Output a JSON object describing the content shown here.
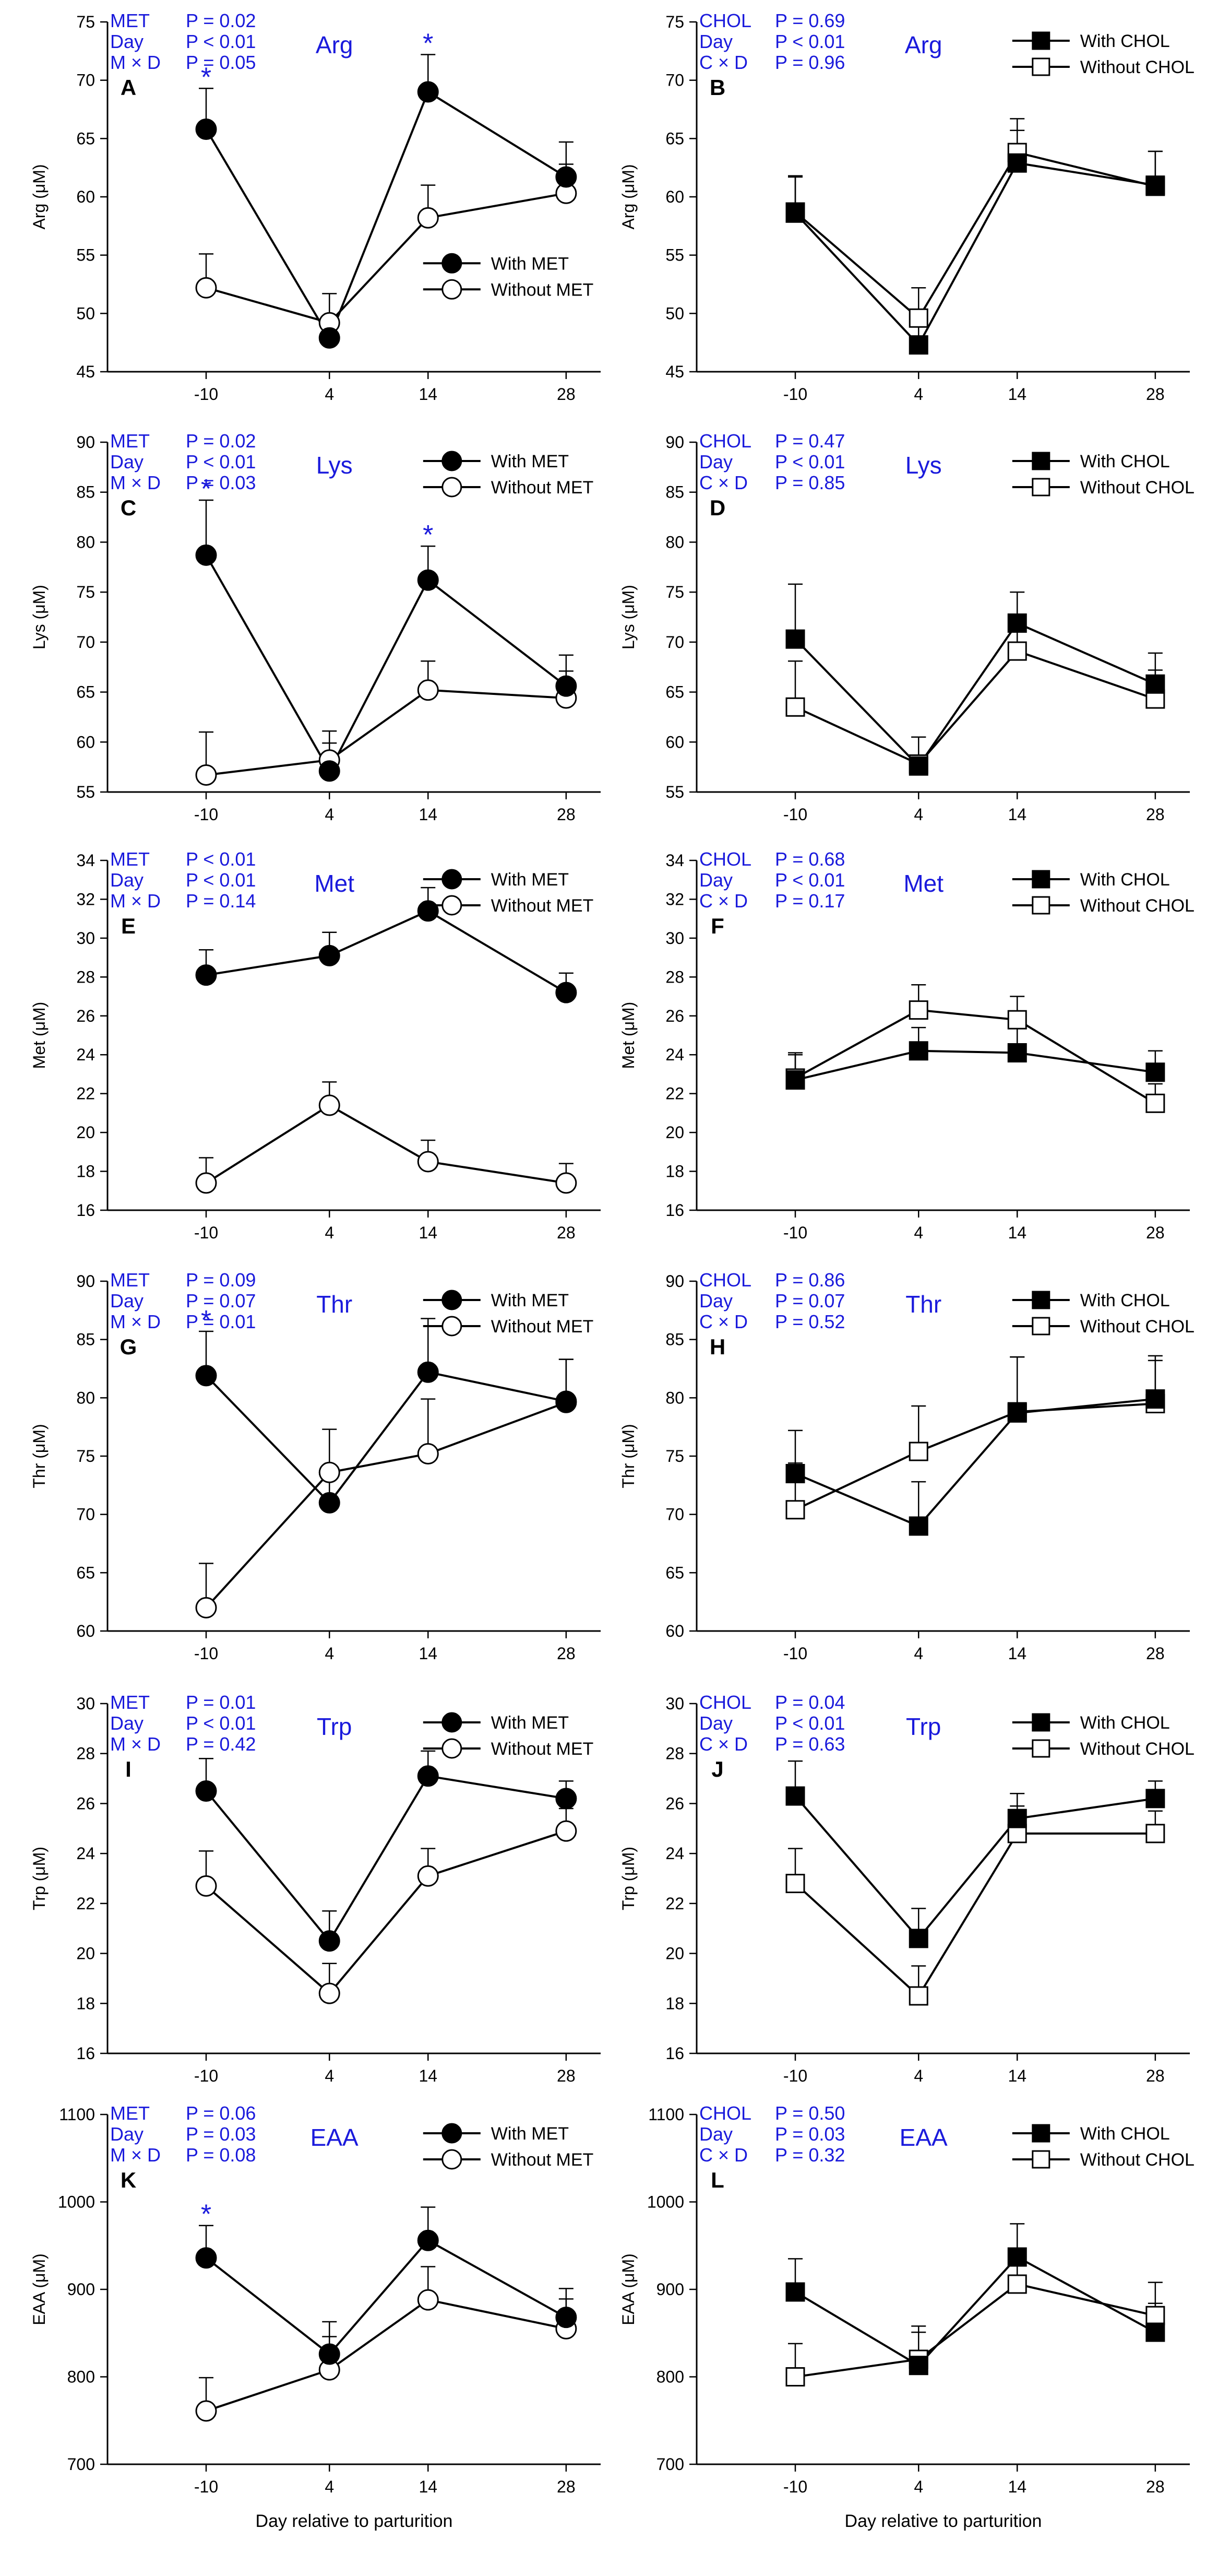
{
  "figure": {
    "x_axis_label": "Day relative to parturition",
    "x_categories": [
      "-10",
      "4",
      "14",
      "28"
    ]
  },
  "colors": {
    "ink": "#000000",
    "annotation_blue": "#1a1adc",
    "background": "#ffffff"
  },
  "chart_data": [
    {
      "panel": "A",
      "type": "line",
      "title": "Arg",
      "ylabel": "Arg (μM)",
      "ylim": [
        45,
        75
      ],
      "yticks": [
        45,
        50,
        55,
        60,
        65,
        70,
        75
      ],
      "categories": [
        "-10",
        "4",
        "14",
        "28"
      ],
      "stats": [
        {
          "label": "MET",
          "value": "P = 0.02"
        },
        {
          "label": "Day",
          "value": "P < 0.01"
        },
        {
          "label": "M × D",
          "value": "P = 0.05"
        }
      ],
      "legend": "right-middle",
      "marker": "circle",
      "series": [
        {
          "name": "With MET",
          "fill": "filled",
          "values": [
            65.8,
            47.9,
            69.0,
            61.7
          ],
          "errors": [
            3.5,
            0.6,
            3.2,
            3.0
          ]
        },
        {
          "name": "Without MET",
          "fill": "open",
          "values": [
            52.2,
            49.2,
            58.2,
            60.3
          ],
          "errors": [
            2.9,
            2.5,
            2.8,
            2.5
          ]
        }
      ],
      "significance": [
        0,
        2
      ]
    },
    {
      "panel": "B",
      "type": "line",
      "title": "Arg",
      "ylabel": "Arg (μM)",
      "ylim": [
        45,
        75
      ],
      "yticks": [
        45,
        50,
        55,
        60,
        65,
        70,
        75
      ],
      "categories": [
        "-10",
        "4",
        "14",
        "28"
      ],
      "stats": [
        {
          "label": "CHOL",
          "value": "P = 0.69"
        },
        {
          "label": "Day",
          "value": "P < 0.01"
        },
        {
          "label": "C × D",
          "value": "P = 0.96"
        }
      ],
      "legend": "top-right",
      "marker": "square",
      "series": [
        {
          "name": "With CHOL",
          "fill": "filled",
          "values": [
            58.6,
            47.3,
            62.9,
            61.0
          ],
          "errors": [
            3.2,
            2.5,
            2.8,
            2.9
          ]
        },
        {
          "name": "Without CHOL",
          "fill": "open",
          "values": [
            58.7,
            49.6,
            63.8,
            60.9
          ],
          "errors": [
            3.0,
            2.6,
            2.9,
            3.0
          ]
        }
      ],
      "significance": []
    },
    {
      "panel": "C",
      "type": "line",
      "title": "Lys",
      "ylabel": "Lys (μM)",
      "ylim": [
        55,
        90
      ],
      "yticks": [
        55,
        60,
        65,
        70,
        75,
        80,
        85,
        90
      ],
      "categories": [
        "-10",
        "4",
        "14",
        "28"
      ],
      "stats": [
        {
          "label": "MET",
          "value": "P = 0.02"
        },
        {
          "label": "Day",
          "value": "P < 0.01"
        },
        {
          "label": "M × D",
          "value": "P = 0.03"
        }
      ],
      "legend": "top-right",
      "marker": "circle",
      "series": [
        {
          "name": "With MET",
          "fill": "filled",
          "values": [
            78.7,
            57.1,
            76.2,
            65.6
          ],
          "errors": [
            5.5,
            2.8,
            3.4,
            3.1
          ]
        },
        {
          "name": "Without MET",
          "fill": "open",
          "values": [
            56.7,
            58.2,
            65.2,
            64.4
          ],
          "errors": [
            4.3,
            2.9,
            2.9,
            2.7
          ]
        }
      ],
      "significance": [
        0,
        2
      ]
    },
    {
      "panel": "D",
      "type": "line",
      "title": "Lys",
      "ylabel": "Lys (μM)",
      "ylim": [
        55,
        90
      ],
      "yticks": [
        55,
        60,
        65,
        70,
        75,
        80,
        85,
        90
      ],
      "categories": [
        "-10",
        "4",
        "14",
        "28"
      ],
      "stats": [
        {
          "label": "CHOL",
          "value": "P = 0.47"
        },
        {
          "label": "Day",
          "value": "P < 0.01"
        },
        {
          "label": "C × D",
          "value": "P = 0.85"
        }
      ],
      "legend": "top-right",
      "marker": "square",
      "series": [
        {
          "name": "With CHOL",
          "fill": "filled",
          "values": [
            70.3,
            57.6,
            71.9,
            65.8
          ],
          "errors": [
            5.5,
            2.9,
            3.1,
            3.1
          ]
        },
        {
          "name": "Without CHOL",
          "fill": "open",
          "values": [
            63.5,
            57.8,
            69.1,
            64.3
          ],
          "errors": [
            4.6,
            2.7,
            3.3,
            2.9
          ]
        }
      ],
      "significance": []
    },
    {
      "panel": "E",
      "type": "line",
      "title": "Met",
      "ylabel": "Met (μM)",
      "ylim": [
        16,
        34
      ],
      "yticks": [
        16,
        18,
        20,
        22,
        24,
        26,
        28,
        30,
        32,
        34
      ],
      "categories": [
        "-10",
        "4",
        "14",
        "28"
      ],
      "stats": [
        {
          "label": "MET",
          "value": "P < 0.01"
        },
        {
          "label": "Day",
          "value": "P < 0.01"
        },
        {
          "label": "M × D",
          "value": "P = 0.14"
        }
      ],
      "legend": "top-right",
      "marker": "circle",
      "series": [
        {
          "name": "With MET",
          "fill": "filled",
          "values": [
            28.1,
            29.1,
            31.4,
            27.2
          ],
          "errors": [
            1.3,
            1.2,
            1.2,
            1.0
          ]
        },
        {
          "name": "Without MET",
          "fill": "open",
          "values": [
            17.4,
            21.4,
            18.5,
            17.4
          ],
          "errors": [
            1.3,
            1.2,
            1.1,
            1.0
          ]
        }
      ],
      "significance": []
    },
    {
      "panel": "F",
      "type": "line",
      "title": "Met",
      "ylabel": "Met (μM)",
      "ylim": [
        16,
        34
      ],
      "yticks": [
        16,
        18,
        20,
        22,
        24,
        26,
        28,
        30,
        32,
        34
      ],
      "categories": [
        "-10",
        "4",
        "14",
        "28"
      ],
      "stats": [
        {
          "label": "CHOL",
          "value": "P = 0.68"
        },
        {
          "label": "Day",
          "value": "P < 0.01"
        },
        {
          "label": "C × D",
          "value": "P = 0.17"
        }
      ],
      "legend": "top-right",
      "marker": "square",
      "series": [
        {
          "name": "With CHOL",
          "fill": "filled",
          "values": [
            22.7,
            24.2,
            24.1,
            23.1
          ],
          "errors": [
            1.4,
            1.2,
            1.3,
            1.1
          ]
        },
        {
          "name": "Without CHOL",
          "fill": "open",
          "values": [
            22.8,
            26.3,
            25.8,
            21.5
          ],
          "errors": [
            1.2,
            1.3,
            1.2,
            1.0
          ]
        }
      ],
      "significance": []
    },
    {
      "panel": "G",
      "type": "line",
      "title": "Thr",
      "ylabel": "Thr (μM)",
      "ylim": [
        60,
        90
      ],
      "yticks": [
        60,
        65,
        70,
        75,
        80,
        85,
        90
      ],
      "categories": [
        "-10",
        "4",
        "14",
        "28"
      ],
      "stats": [
        {
          "label": "MET",
          "value": "P = 0.09"
        },
        {
          "label": "Day",
          "value": "P = 0.07"
        },
        {
          "label": "M × D",
          "value": "P = 0.01"
        }
      ],
      "legend": "top-right",
      "marker": "circle",
      "series": [
        {
          "name": "With MET",
          "fill": "filled",
          "values": [
            81.9,
            71.0,
            82.2,
            79.7
          ],
          "errors": [
            3.8,
            2.8,
            4.6,
            3.6
          ]
        },
        {
          "name": "Without MET",
          "fill": "open",
          "values": [
            62.0,
            73.6,
            75.2,
            79.6
          ],
          "errors": [
            3.8,
            3.7,
            4.7,
            3.7
          ]
        }
      ],
      "significance": [
        0
      ]
    },
    {
      "panel": "H",
      "type": "line",
      "title": "Thr",
      "ylabel": "Thr (μM)",
      "ylim": [
        60,
        90
      ],
      "yticks": [
        60,
        65,
        70,
        75,
        80,
        85,
        90
      ],
      "categories": [
        "-10",
        "4",
        "14",
        "28"
      ],
      "stats": [
        {
          "label": "CHOL",
          "value": "P = 0.86"
        },
        {
          "label": "Day",
          "value": "P = 0.07"
        },
        {
          "label": "C × D",
          "value": "P = 0.52"
        }
      ],
      "legend": "top-right",
      "marker": "square",
      "series": [
        {
          "name": "With CHOL",
          "fill": "filled",
          "values": [
            73.5,
            69.0,
            78.7,
            79.9
          ],
          "errors": [
            3.7,
            3.8,
            4.8,
            3.7
          ]
        },
        {
          "name": "Without CHOL",
          "fill": "open",
          "values": [
            70.4,
            75.4,
            78.8,
            79.5
          ],
          "errors": [
            4.0,
            3.9,
            4.7,
            3.7
          ]
        }
      ],
      "significance": []
    },
    {
      "panel": "I",
      "type": "line",
      "title": "Trp",
      "ylabel": "Trp (μM)",
      "ylim": [
        16,
        30
      ],
      "yticks": [
        16,
        18,
        20,
        22,
        24,
        26,
        28,
        30
      ],
      "categories": [
        "-10",
        "4",
        "14",
        "28"
      ],
      "stats": [
        {
          "label": "MET",
          "value": "P = 0.01"
        },
        {
          "label": "Day",
          "value": "P < 0.01"
        },
        {
          "label": "M × D",
          "value": "P = 0.42"
        }
      ],
      "legend": "top-right",
      "marker": "circle",
      "series": [
        {
          "name": "With MET",
          "fill": "filled",
          "values": [
            26.5,
            20.5,
            27.1,
            26.2
          ],
          "errors": [
            1.3,
            1.2,
            1.0,
            0.7
          ]
        },
        {
          "name": "Without MET",
          "fill": "open",
          "values": [
            22.7,
            18.4,
            23.1,
            24.9
          ],
          "errors": [
            1.4,
            1.2,
            1.1,
            0.9
          ]
        }
      ],
      "significance": []
    },
    {
      "panel": "J",
      "type": "line",
      "title": "Trp",
      "ylabel": "Trp (μM)",
      "ylim": [
        16,
        30
      ],
      "yticks": [
        16,
        18,
        20,
        22,
        24,
        26,
        28,
        30
      ],
      "categories": [
        "-10",
        "4",
        "14",
        "28"
      ],
      "stats": [
        {
          "label": "CHOL",
          "value": "P = 0.04"
        },
        {
          "label": "Day",
          "value": "P < 0.01"
        },
        {
          "label": "C × D",
          "value": "P = 0.63"
        }
      ],
      "legend": "top-right",
      "marker": "square",
      "series": [
        {
          "name": "With CHOL",
          "fill": "filled",
          "values": [
            26.3,
            20.6,
            25.4,
            26.2
          ],
          "errors": [
            1.4,
            1.2,
            1.0,
            0.7
          ]
        },
        {
          "name": "Without CHOL",
          "fill": "open",
          "values": [
            22.8,
            18.3,
            24.8,
            24.8
          ],
          "errors": [
            1.4,
            1.2,
            1.1,
            0.9
          ]
        }
      ],
      "significance": []
    },
    {
      "panel": "K",
      "type": "line",
      "title": "EAA",
      "ylabel": "EAA (μM)",
      "ylim": [
        700,
        1100
      ],
      "yticks": [
        700,
        800,
        900,
        1000,
        1100
      ],
      "categories": [
        "-10",
        "4",
        "14",
        "28"
      ],
      "stats": [
        {
          "label": "MET",
          "value": "P = 0.06"
        },
        {
          "label": "Day",
          "value": "P = 0.03"
        },
        {
          "label": "M × D",
          "value": "P = 0.08"
        }
      ],
      "legend": "top-right",
      "marker": "circle",
      "series": [
        {
          "name": "With MET",
          "fill": "filled",
          "values": [
            936,
            826,
            956,
            868
          ],
          "errors": [
            37,
            37,
            38,
            33
          ]
        },
        {
          "name": "Without MET",
          "fill": "open",
          "values": [
            761,
            808,
            888,
            855
          ],
          "errors": [
            38,
            38,
            38,
            34
          ]
        }
      ],
      "significance": [
        0
      ]
    },
    {
      "panel": "L",
      "type": "line",
      "title": "EAA",
      "ylabel": "EAA (μM)",
      "ylim": [
        700,
        1100
      ],
      "yticks": [
        700,
        800,
        900,
        1000,
        1100
      ],
      "categories": [
        "-10",
        "4",
        "14",
        "28"
      ],
      "stats": [
        {
          "label": "CHOL",
          "value": "P = 0.50"
        },
        {
          "label": "Day",
          "value": "P = 0.03"
        },
        {
          "label": "C × D",
          "value": "P = 0.32"
        }
      ],
      "legend": "top-right",
      "marker": "square",
      "series": [
        {
          "name": "With CHOL",
          "fill": "filled",
          "values": [
            897,
            813,
            937,
            851
          ],
          "errors": [
            38,
            38,
            38,
            33
          ]
        },
        {
          "name": "Without CHOL",
          "fill": "open",
          "values": [
            800,
            820,
            906,
            870
          ],
          "errors": [
            38,
            38,
            38,
            38
          ]
        }
      ],
      "significance": []
    }
  ]
}
